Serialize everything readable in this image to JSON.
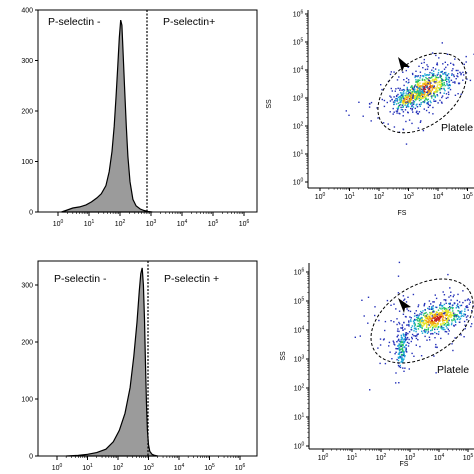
{
  "chart_data": [
    {
      "type": "area",
      "panel": "histogram-top",
      "x_scale": "log",
      "xlim": [
        0.5,
        1000000
      ],
      "ylim": [
        0,
        400
      ],
      "y_ticks": [
        "0",
        "100",
        "200",
        "300",
        "400"
      ],
      "x_ticks": [
        "10^0",
        "10^1",
        "10^2",
        "10^3",
        "10^4",
        "10^5",
        "10^6"
      ],
      "gate_threshold": 1000,
      "gate_labels": [
        "P-selectin -",
        "P-selectin+"
      ],
      "fill_color": "#9b9b9b",
      "x": [
        1.3,
        2,
        3,
        5,
        8,
        12,
        18,
        25,
        35,
        45,
        55,
        65,
        75,
        85,
        95,
        105,
        115,
        125,
        140,
        160,
        180,
        210,
        260,
        330,
        450,
        600,
        800,
        1100
      ],
      "values": [
        0,
        4,
        8,
        10,
        14,
        20,
        28,
        36,
        52,
        80,
        120,
        170,
        230,
        290,
        345,
        380,
        370,
        320,
        250,
        170,
        110,
        60,
        25,
        12,
        6,
        3,
        1,
        0
      ]
    },
    {
      "type": "scatter",
      "panel": "dotplot-top",
      "x_scale": "log",
      "y_scale": "log",
      "xlim": [
        1,
        1000000
      ],
      "ylim": [
        1,
        1000000
      ],
      "xlabel": "FS",
      "ylabel": "SS",
      "x_ticks": [
        "10^0",
        "10^1",
        "10^2",
        "10^3",
        "10^4",
        "10^5"
      ],
      "y_ticks": [
        "10^0",
        "10^1",
        "10^2",
        "10^3",
        "10^4",
        "10^5",
        "10^6"
      ],
      "gate_label": "Platele",
      "populations": [
        {
          "x_center": 5000,
          "y_center": 2000,
          "density": "high"
        },
        {
          "x_center": 1500,
          "y_center": 1000,
          "density": "medium"
        }
      ]
    },
    {
      "type": "area",
      "panel": "histogram-bottom",
      "x_scale": "log",
      "xlim": [
        0.5,
        1000000
      ],
      "ylim": [
        0,
        350
      ],
      "y_ticks": [
        "0",
        "100",
        "200",
        "300"
      ],
      "x_ticks": [
        "10^0",
        "10^1",
        "10^2",
        "10^3",
        "10^4",
        "10^5",
        "10^6"
      ],
      "gate_threshold": 1000,
      "gate_labels": [
        "P-selectin -",
        "P-selectin +"
      ],
      "fill_color": "#9b9b9b",
      "x": [
        2,
        5,
        10,
        20,
        40,
        70,
        110,
        170,
        250,
        330,
        420,
        500,
        560,
        620,
        680,
        740,
        800,
        860,
        920,
        1000,
        1100,
        1300,
        1600,
        2000
      ],
      "values": [
        0,
        1,
        3,
        6,
        12,
        25,
        45,
        75,
        120,
        175,
        235,
        290,
        320,
        330,
        300,
        240,
        160,
        90,
        45,
        20,
        8,
        3,
        1,
        0
      ]
    },
    {
      "type": "scatter",
      "panel": "dotplot-bottom",
      "x_scale": "log",
      "y_scale": "log",
      "xlim": [
        1,
        1000000
      ],
      "ylim": [
        1,
        1000000
      ],
      "xlabel": "FS",
      "ylabel": "SS",
      "x_ticks": [
        "10^0",
        "10^1",
        "10^2",
        "10^3",
        "10^4",
        "10^5"
      ],
      "y_ticks": [
        "10^0",
        "10^1",
        "10^2",
        "10^3",
        "10^4",
        "10^5",
        "10^6"
      ],
      "gate_label": "Platele",
      "populations": [
        {
          "x_center": 8000,
          "y_center": 2500,
          "density": "high"
        },
        {
          "x_center": 600,
          "y_center": 80,
          "density": "medium"
        }
      ]
    }
  ]
}
